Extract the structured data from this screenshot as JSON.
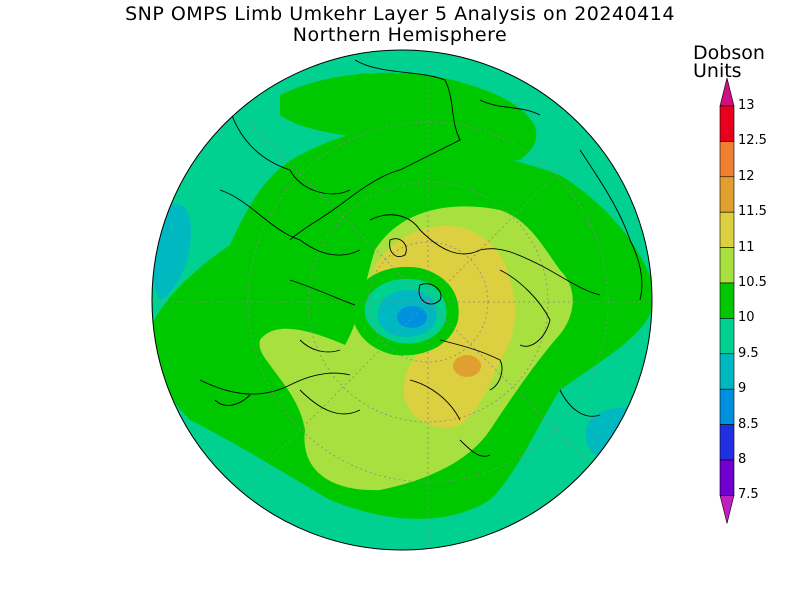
{
  "title": "SNP OMPS Limb Umkehr Layer 5 Analysis on 20240414",
  "subtitle": "Northern Hemisphere",
  "units_line1": "Dobson",
  "units_line2": "Units",
  "colorbar": {
    "min": 7.5,
    "max": 13,
    "ticks": [
      "13",
      "12.5",
      "12",
      "11.5",
      "11",
      "10.5",
      "10",
      "9.5",
      "9",
      "8.5",
      "8",
      "7.5"
    ],
    "colors_top_to_bottom": [
      "#e8001c",
      "#f08030",
      "#e0a030",
      "#dcd040",
      "#a8e040",
      "#00c800",
      "#00d090",
      "#00b8c0",
      "#0090e0",
      "#2030e0",
      "#7000d0"
    ],
    "over_color": "#d01080",
    "under_color": "#c020c0"
  },
  "map": {
    "projection": "north-polar-stereographic",
    "background_color": "#00d090",
    "value_range_dobson": [
      8.5,
      11.8
    ]
  }
}
